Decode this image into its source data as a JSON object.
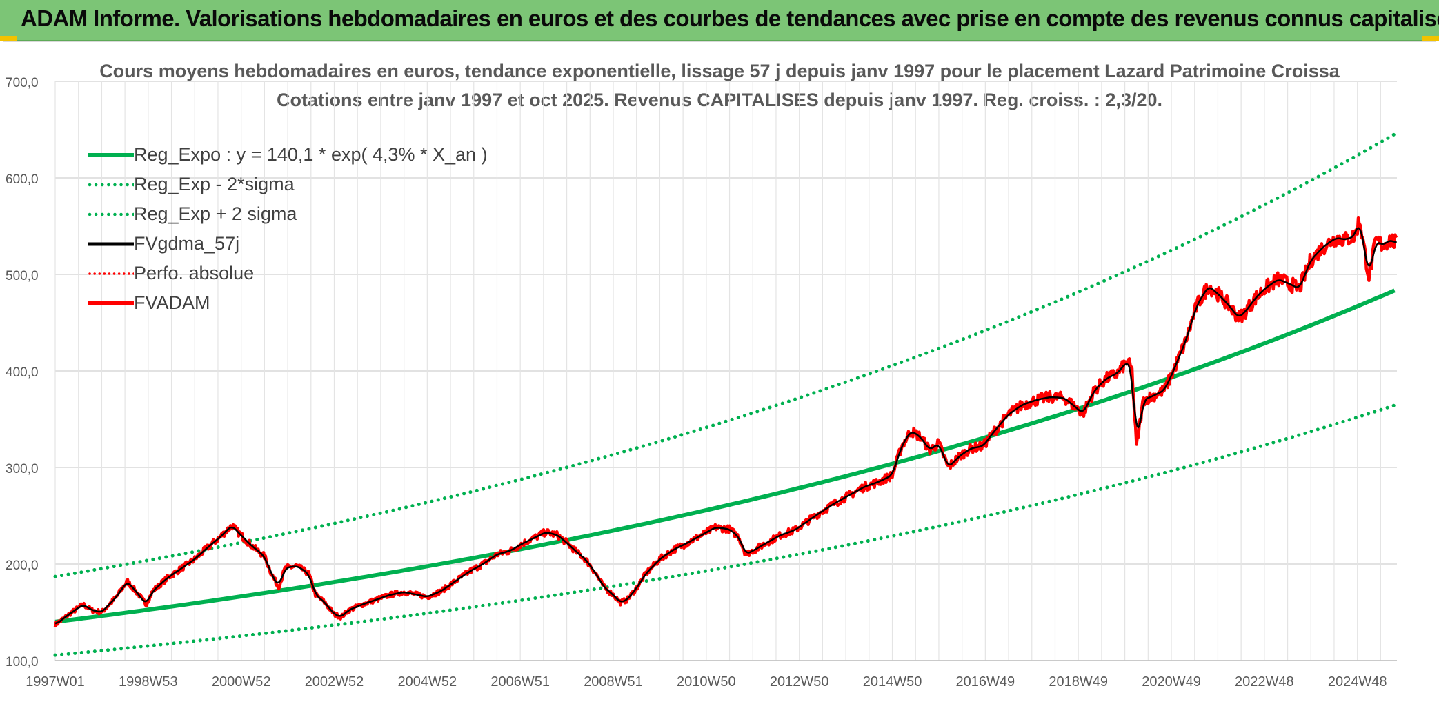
{
  "banner": {
    "title": "ADAM Informe. Valorisations hebdomadaires en euros et des courbes de tendances avec prise en compte des revenus connus capitalisés"
  },
  "colors": {
    "banner": "#7cc576",
    "reg_green": "#00b050",
    "black": "#000000",
    "red": "#ff0000",
    "grid": "#d9d9d9",
    "axis_text": "#595959"
  },
  "chart_data": {
    "type": "line",
    "title_line1": "Cours moyens hebdomadaires en euros, tendance exponentielle, lissage 57 j depuis janv 1997 pour le placement Lazard Patrimoine Croissa",
    "title_line2": "Cotations entre janv 1997 et oct 2025. Revenus CAPITALISES depuis janv 1997. Reg. croiss. : 2,3/20.",
    "xlabel": "",
    "ylabel": "",
    "ylim": [
      100,
      700
    ],
    "xlim": [
      1997.0,
      2025.85
    ],
    "yticks": [
      "100,0",
      "200,0",
      "300,0",
      "400,0",
      "500,0",
      "600,0",
      "700,0"
    ],
    "xticks": [
      {
        "label": "1997W01",
        "x": 1997.0
      },
      {
        "label": "1998W53",
        "x": 1999.0
      },
      {
        "label": "2000W52",
        "x": 2001.0
      },
      {
        "label": "2002W52",
        "x": 2003.0
      },
      {
        "label": "2004W52",
        "x": 2005.0
      },
      {
        "label": "2006W51",
        "x": 2007.0
      },
      {
        "label": "2008W51",
        "x": 2009.0
      },
      {
        "label": "2010W50",
        "x": 2011.0
      },
      {
        "label": "2012W50",
        "x": 2013.0
      },
      {
        "label": "2014W50",
        "x": 2015.0
      },
      {
        "label": "2016W49",
        "x": 2017.0
      },
      {
        "label": "2018W49",
        "x": 2019.0
      },
      {
        "label": "2020W49",
        "x": 2021.0
      },
      {
        "label": "2022W48",
        "x": 2023.0
      },
      {
        "label": "2024W48",
        "x": 2025.0
      }
    ],
    "grid": true,
    "legend_position": "top-left",
    "regression": {
      "a": 140.1,
      "rate": 0.043,
      "minus_2sigma_factor": 0.7539,
      "plus_2sigma_factor": 1.335
    },
    "series": [
      {
        "name": "Reg_Expo : y = 140,1 * exp( 4,3% *  X_an )",
        "style": "solid-green"
      },
      {
        "name": "Reg_Exp - 2*sigma",
        "style": "dotted-green"
      },
      {
        "name": "Reg_Exp + 2 sigma",
        "style": "dotted-green"
      },
      {
        "name": "FVgdma_57j",
        "style": "solid-black"
      },
      {
        "name": "Perfo. absolue",
        "style": "dotted-red"
      },
      {
        "name": "FVADAM",
        "style": "solid-red"
      }
    ],
    "fvadam_points": [
      [
        1997.0,
        137
      ],
      [
        1997.3,
        148
      ],
      [
        1997.6,
        158
      ],
      [
        1997.8,
        152
      ],
      [
        1998.0,
        150
      ],
      [
        1998.3,
        165
      ],
      [
        1998.55,
        182
      ],
      [
        1998.8,
        168
      ],
      [
        1998.95,
        158
      ],
      [
        1999.1,
        172
      ],
      [
        1999.4,
        185
      ],
      [
        1999.7,
        195
      ],
      [
        2000.0,
        205
      ],
      [
        2000.3,
        218
      ],
      [
        2000.55,
        228
      ],
      [
        2000.8,
        240
      ],
      [
        2000.95,
        232
      ],
      [
        2001.2,
        220
      ],
      [
        2001.5,
        208
      ],
      [
        2001.65,
        190
      ],
      [
        2001.8,
        176
      ],
      [
        2001.95,
        196
      ],
      [
        2002.2,
        198
      ],
      [
        2002.45,
        190
      ],
      [
        2002.6,
        168
      ],
      [
        2002.8,
        160
      ],
      [
        2003.0,
        148
      ],
      [
        2003.15,
        145
      ],
      [
        2003.3,
        152
      ],
      [
        2003.6,
        158
      ],
      [
        2003.9,
        163
      ],
      [
        2004.2,
        168
      ],
      [
        2004.5,
        171
      ],
      [
        2004.8,
        168
      ],
      [
        2005.0,
        166
      ],
      [
        2005.3,
        172
      ],
      [
        2005.6,
        182
      ],
      [
        2005.9,
        192
      ],
      [
        2006.2,
        200
      ],
      [
        2006.5,
        210
      ],
      [
        2006.8,
        214
      ],
      [
        2007.0,
        220
      ],
      [
        2007.3,
        227
      ],
      [
        2007.55,
        233
      ],
      [
        2007.8,
        230
      ],
      [
        2008.0,
        222
      ],
      [
        2008.2,
        213
      ],
      [
        2008.4,
        205
      ],
      [
        2008.6,
        192
      ],
      [
        2008.8,
        176
      ],
      [
        2009.0,
        168
      ],
      [
        2009.15,
        160
      ],
      [
        2009.3,
        163
      ],
      [
        2009.5,
        175
      ],
      [
        2009.7,
        190
      ],
      [
        2010.0,
        205
      ],
      [
        2010.3,
        215
      ],
      [
        2010.6,
        222
      ],
      [
        2010.9,
        230
      ],
      [
        2011.2,
        238
      ],
      [
        2011.5,
        236
      ],
      [
        2011.7,
        228
      ],
      [
        2011.85,
        210
      ],
      [
        2012.05,
        215
      ],
      [
        2012.3,
        222
      ],
      [
        2012.6,
        230
      ],
      [
        2012.9,
        235
      ],
      [
        2013.2,
        245
      ],
      [
        2013.5,
        255
      ],
      [
        2013.8,
        264
      ],
      [
        2014.1,
        272
      ],
      [
        2014.4,
        280
      ],
      [
        2014.7,
        285
      ],
      [
        2015.0,
        292
      ],
      [
        2015.2,
        322
      ],
      [
        2015.4,
        338
      ],
      [
        2015.6,
        332
      ],
      [
        2015.8,
        318
      ],
      [
        2016.0,
        325
      ],
      [
        2016.2,
        300
      ],
      [
        2016.45,
        312
      ],
      [
        2016.7,
        320
      ],
      [
        2016.95,
        322
      ],
      [
        2017.2,
        338
      ],
      [
        2017.5,
        355
      ],
      [
        2017.8,
        365
      ],
      [
        2018.1,
        370
      ],
      [
        2018.4,
        373
      ],
      [
        2018.7,
        372
      ],
      [
        2018.95,
        362
      ],
      [
        2019.1,
        356
      ],
      [
        2019.35,
        380
      ],
      [
        2019.6,
        392
      ],
      [
        2019.85,
        398
      ],
      [
        2020.05,
        410
      ],
      [
        2020.15,
        402
      ],
      [
        2020.25,
        322
      ],
      [
        2020.4,
        370
      ],
      [
        2020.6,
        374
      ],
      [
        2020.85,
        380
      ],
      [
        2021.0,
        395
      ],
      [
        2021.3,
        430
      ],
      [
        2021.55,
        468
      ],
      [
        2021.8,
        488
      ],
      [
        2022.0,
        480
      ],
      [
        2022.2,
        470
      ],
      [
        2022.45,
        455
      ],
      [
        2022.6,
        462
      ],
      [
        2022.8,
        475
      ],
      [
        2023.0,
        485
      ],
      [
        2023.3,
        495
      ],
      [
        2023.55,
        490
      ],
      [
        2023.75,
        485
      ],
      [
        2024.0,
        515
      ],
      [
        2024.3,
        530
      ],
      [
        2024.55,
        538
      ],
      [
        2024.75,
        536
      ],
      [
        2024.95,
        540
      ],
      [
        2025.05,
        558
      ],
      [
        2025.15,
        525
      ],
      [
        2025.25,
        498
      ],
      [
        2025.4,
        535
      ],
      [
        2025.55,
        530
      ],
      [
        2025.7,
        536
      ],
      [
        2025.85,
        532
      ]
    ]
  }
}
